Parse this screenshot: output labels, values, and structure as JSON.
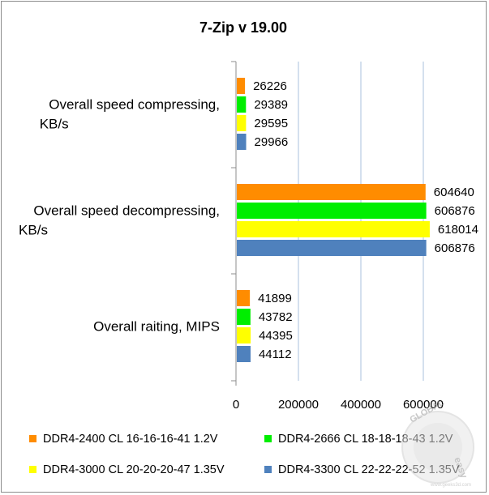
{
  "chart_data": {
    "type": "bar",
    "orientation": "horizontal",
    "title": "7-Zip v 19.00",
    "categories": [
      [
        "Overall speed compressing,",
        "KB/s"
      ],
      [
        "Overall speed  decompressing,",
        "KB/s"
      ],
      [
        "Overall raiting, MIPS"
      ]
    ],
    "series": [
      {
        "name": "DDR4-2400 CL 16-16-16-41 1.2V",
        "color": "#ff8c00",
        "values": [
          26226,
          604640,
          41899
        ]
      },
      {
        "name": "DDR4-2666 CL 18-18-18-43 1.2V",
        "color": "#00ee00",
        "values": [
          29389,
          606876,
          43782
        ]
      },
      {
        "name": "DDR4-3000 CL 20-20-20-47 1.35V",
        "color": "#ffff00",
        "values": [
          29595,
          618014,
          44395
        ]
      },
      {
        "name": "DDR4-3300 CL 22-22-22-52 1.35V",
        "color": "#4f81bd",
        "values": [
          29966,
          606876,
          44112
        ]
      }
    ],
    "xlim": [
      0,
      800000
    ],
    "xticks": [
      0,
      200000,
      400000,
      600000
    ],
    "grid": true,
    "legend": "bottom"
  },
  "watermark": {
    "brand": "GLOBAL",
    "sub": "easy",
    "url": "www.geeks3d.com"
  }
}
